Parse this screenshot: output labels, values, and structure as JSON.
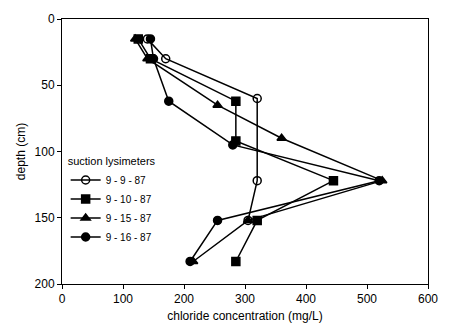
{
  "chart_data": {
    "type": "line",
    "x_label": "chloride concentration (mg/L)",
    "y_label": "depth (cm)",
    "legend_title": "suction lysimeters",
    "legend": "bottom left",
    "grid": false,
    "xlim": [
      0,
      600
    ],
    "xticks": [
      0,
      100,
      200,
      300,
      400,
      500,
      600
    ],
    "ylim": [
      200,
      0
    ],
    "yticks": [
      0,
      50,
      100,
      150,
      200
    ],
    "series": [
      {
        "name": "9 - 9 - 87",
        "color": "#000000",
        "marker": "circle-open",
        "x": [
          140,
          170,
          320,
          320,
          305
        ],
        "y": [
          15,
          30,
          60,
          122,
          152
        ]
      },
      {
        "name": "9 - 10 - 87",
        "color": "#000000",
        "marker": "square",
        "x": [
          125,
          145,
          285,
          285,
          445,
          320,
          285
        ],
        "y": [
          15,
          30,
          62,
          92,
          122,
          152,
          183
        ]
      },
      {
        "name": "9 - 15 - 87",
        "color": "#000000",
        "marker": "triangle-up",
        "x": [
          120,
          140,
          255,
          360,
          525,
          305,
          215
        ],
        "y": [
          15,
          30,
          65,
          90,
          122,
          152,
          183
        ]
      },
      {
        "name": "9 - 16 - 87",
        "color": "#000000",
        "marker": "circle",
        "x": [
          145,
          150,
          175,
          280,
          520,
          255,
          210
        ],
        "y": [
          15,
          30,
          62,
          95,
          122,
          152,
          183
        ]
      }
    ]
  }
}
